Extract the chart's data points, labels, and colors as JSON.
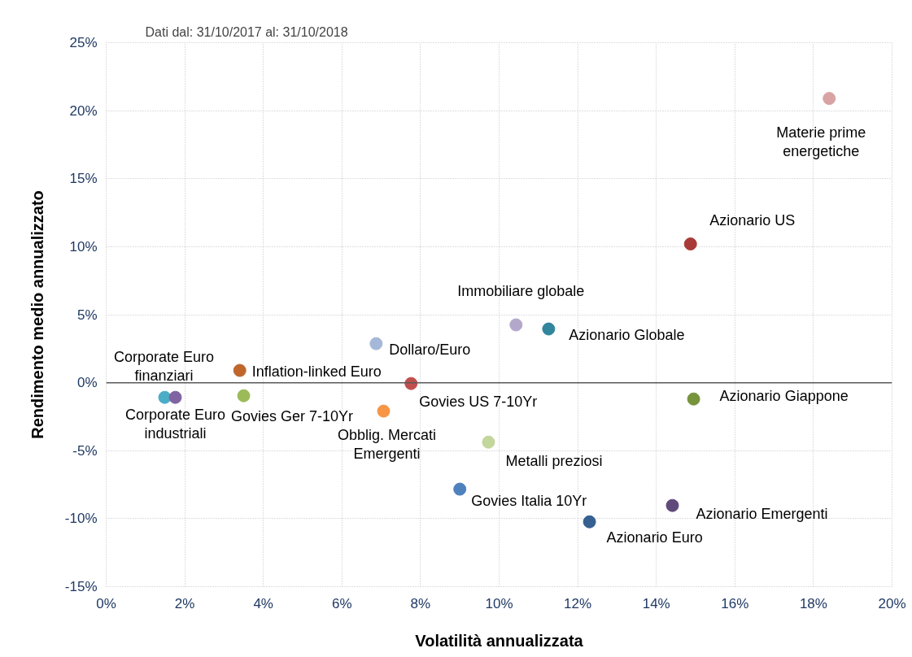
{
  "chart_data": {
    "type": "scatter",
    "title": "Dati dal:   31/10/2017      al:      31/10/2018",
    "xlabel": "Volatilità annualizzata",
    "ylabel": "Rendimento medio annualizzato",
    "xlim": [
      0,
      20
    ],
    "ylim": [
      -15,
      25
    ],
    "xticks": [
      {
        "value": 0,
        "label": "0%"
      },
      {
        "value": 2,
        "label": "2%"
      },
      {
        "value": 4,
        "label": "4%"
      },
      {
        "value": 6,
        "label": "6%"
      },
      {
        "value": 8,
        "label": "8%"
      },
      {
        "value": 10,
        "label": "10%"
      },
      {
        "value": 12,
        "label": "12%"
      },
      {
        "value": 14,
        "label": "14%"
      },
      {
        "value": 16,
        "label": "16%"
      },
      {
        "value": 18,
        "label": "18%"
      },
      {
        "value": 20,
        "label": "20%"
      }
    ],
    "yticks": [
      {
        "value": -15,
        "label": "-15%"
      },
      {
        "value": -10,
        "label": "-10%"
      },
      {
        "value": -5,
        "label": "-5%"
      },
      {
        "value": 0,
        "label": "0%"
      },
      {
        "value": 5,
        "label": "5%"
      },
      {
        "value": 10,
        "label": "10%"
      },
      {
        "value": 15,
        "label": "15%"
      },
      {
        "value": 20,
        "label": "20%"
      },
      {
        "value": 25,
        "label": "25%"
      }
    ],
    "grid": true,
    "marker": "circle",
    "ref_lines": [
      {
        "axis": "y",
        "value": 0,
        "color": "#595959"
      }
    ],
    "series": [
      {
        "name": "Materie prime energetiche",
        "color": "#d8a3a3",
        "x": [
          18.4
        ],
        "values": [
          20.9
        ]
      },
      {
        "name": "Azionario US",
        "color": "#a93a37",
        "x": [
          14.87
        ],
        "values": [
          10.2
        ]
      },
      {
        "name": "Immobiliare globale",
        "color": "#b3a7cc",
        "x": [
          10.43
        ],
        "values": [
          4.25
        ]
      },
      {
        "name": "Azionario Globale",
        "color": "#31859c",
        "x": [
          11.26
        ],
        "values": [
          3.95
        ]
      },
      {
        "name": "Dollaro/Euro",
        "color": "#a6b8d8",
        "x": [
          6.87
        ],
        "values": [
          2.87
        ]
      },
      {
        "name": "Inflation-linked Euro",
        "color": "#c0662c",
        "x": [
          3.4
        ],
        "values": [
          0.9
        ]
      },
      {
        "name": "Govies US 7-10Yr",
        "color": "#c0504d",
        "x": [
          7.76
        ],
        "values": [
          -0.06
        ]
      },
      {
        "name": "Corporate Euro finanziari",
        "color": "#4bacc6",
        "x": [
          1.49
        ],
        "values": [
          -1.08
        ]
      },
      {
        "name": "Corporate Euro industriali",
        "color": "#8064a2",
        "x": [
          1.76
        ],
        "values": [
          -1.08
        ]
      },
      {
        "name": "Govies Ger  7-10Yr",
        "color": "#9bbb59",
        "x": [
          3.5
        ],
        "values": [
          -0.96
        ]
      },
      {
        "name": "Obblig. Mercati Emergenti",
        "color": "#f79646",
        "x": [
          7.06
        ],
        "values": [
          -2.09
        ]
      },
      {
        "name": "Azionario Giappone",
        "color": "#77933c",
        "x": [
          14.95
        ],
        "values": [
          -1.2
        ]
      },
      {
        "name": "Metalli preziosi",
        "color": "#c3d69b",
        "x": [
          9.73
        ],
        "values": [
          -4.37
        ]
      },
      {
        "name": "Govies Italia 10Yr",
        "color": "#4f81bd",
        "x": [
          9.0
        ],
        "values": [
          -7.83
        ]
      },
      {
        "name": "Azionario Euro",
        "color": "#366092",
        "x": [
          12.3
        ],
        "values": [
          -10.23
        ]
      },
      {
        "name": "Azionario Emergenti",
        "color": "#604a7b",
        "x": [
          14.41
        ],
        "values": [
          -9.03
        ]
      }
    ]
  }
}
